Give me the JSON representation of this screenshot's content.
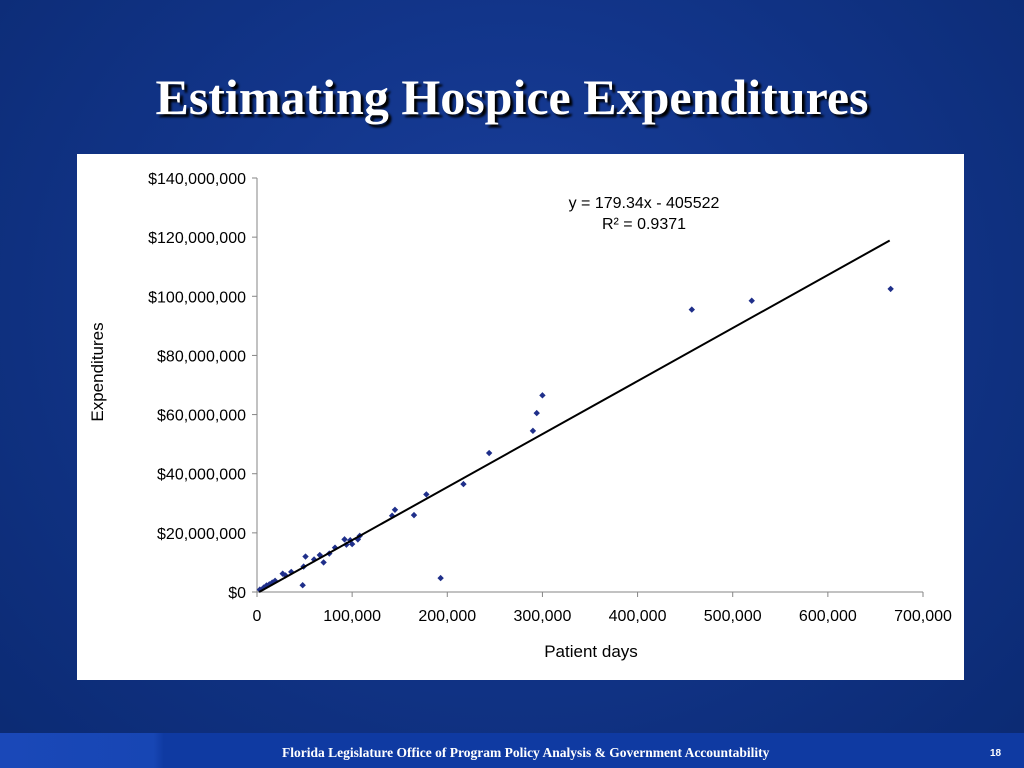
{
  "slide": {
    "title": "Estimating Hospice Expenditures",
    "footer": "Florida Legislature Office of Program Policy Analysis & Government Accountability",
    "page_number": "18"
  },
  "colors": {
    "background": "#12358a",
    "marker": "#1f2f8a",
    "trendline": "#000000"
  },
  "chart_data": {
    "type": "scatter",
    "xlabel": "Patient days",
    "ylabel": "Expenditures",
    "xlim": [
      0,
      700000
    ],
    "ylim": [
      0,
      140000000
    ],
    "x_ticks": [
      0,
      100000,
      200000,
      300000,
      400000,
      500000,
      600000,
      700000
    ],
    "x_tick_labels": [
      "0",
      "100,000",
      "200,000",
      "300,000",
      "400,000",
      "500,000",
      "600,000",
      "700,000"
    ],
    "y_ticks": [
      0,
      20000000,
      40000000,
      60000000,
      80000000,
      100000000,
      120000000,
      140000000
    ],
    "y_tick_labels": [
      "$0",
      "$20,000,000",
      "$40,000,000",
      "$60,000,000",
      "$80,000,000",
      "$100,000,000",
      "$120,000,000",
      "$140,000,000"
    ],
    "grid": false,
    "trendline": {
      "slope": 179.34,
      "intercept": -405522,
      "x_range": [
        0,
        665000
      ],
      "equation": "y = 179.34x - 405522",
      "r_squared": "R² = 0.9371"
    },
    "points": [
      {
        "x": 3000,
        "y": 800000
      },
      {
        "x": 7000,
        "y": 1500000
      },
      {
        "x": 10000,
        "y": 2200000
      },
      {
        "x": 13000,
        "y": 2600000
      },
      {
        "x": 16000,
        "y": 3200000
      },
      {
        "x": 19000,
        "y": 3800000
      },
      {
        "x": 27000,
        "y": 6200000
      },
      {
        "x": 30000,
        "y": 5600000
      },
      {
        "x": 36000,
        "y": 6800000
      },
      {
        "x": 48000,
        "y": 2300000
      },
      {
        "x": 49000,
        "y": 8600000
      },
      {
        "x": 51000,
        "y": 12000000
      },
      {
        "x": 60000,
        "y": 11000000
      },
      {
        "x": 66000,
        "y": 12500000
      },
      {
        "x": 70000,
        "y": 10000000
      },
      {
        "x": 76000,
        "y": 13000000
      },
      {
        "x": 82000,
        "y": 15000000
      },
      {
        "x": 92000,
        "y": 17800000
      },
      {
        "x": 94000,
        "y": 16000000
      },
      {
        "x": 98000,
        "y": 17500000
      },
      {
        "x": 100000,
        "y": 16200000
      },
      {
        "x": 106000,
        "y": 17800000
      },
      {
        "x": 108000,
        "y": 19000000
      },
      {
        "x": 142000,
        "y": 25800000
      },
      {
        "x": 145000,
        "y": 27800000
      },
      {
        "x": 165000,
        "y": 26000000
      },
      {
        "x": 178000,
        "y": 33000000
      },
      {
        "x": 193000,
        "y": 4700000
      },
      {
        "x": 217000,
        "y": 36500000
      },
      {
        "x": 244000,
        "y": 47000000
      },
      {
        "x": 290000,
        "y": 54500000
      },
      {
        "x": 294000,
        "y": 60500000
      },
      {
        "x": 300000,
        "y": 66500000
      },
      {
        "x": 457000,
        "y": 95500000
      },
      {
        "x": 520000,
        "y": 98500000
      },
      {
        "x": 666000,
        "y": 102500000
      }
    ]
  }
}
